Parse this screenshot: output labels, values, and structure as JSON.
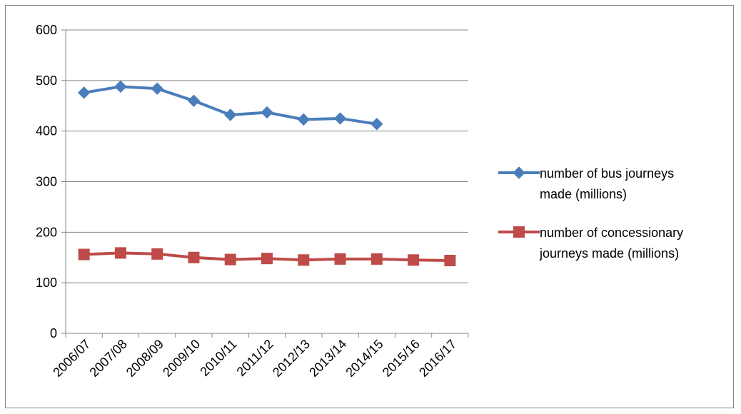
{
  "chart_data": {
    "type": "line",
    "title": "",
    "xlabel": "",
    "ylabel": "",
    "categories": [
      "2006/07",
      "2007/08",
      "2008/09",
      "2009/10",
      "2010/11",
      "2011/12",
      "2012/13",
      "2013/14",
      "2014/15",
      "2015/16",
      "2016/17"
    ],
    "ylim": [
      0,
      600
    ],
    "yticks": [
      0,
      100,
      200,
      300,
      400,
      500,
      600
    ],
    "grid": "horizontal",
    "legend_position": "right",
    "series": [
      {
        "name_lines": [
          "number of bus journeys",
          "made (millions)"
        ],
        "color": "#4a7ebb",
        "marker": "diamond",
        "values": [
          476,
          488,
          484,
          460,
          432,
          437,
          423,
          425,
          414,
          null,
          null
        ]
      },
      {
        "name_lines": [
          "number of concessionary",
          "journeys made (millions)"
        ],
        "color": "#be4b48",
        "marker": "square",
        "values": [
          156,
          159,
          157,
          150,
          146,
          148,
          145,
          147,
          147,
          145,
          144
        ]
      }
    ]
  }
}
